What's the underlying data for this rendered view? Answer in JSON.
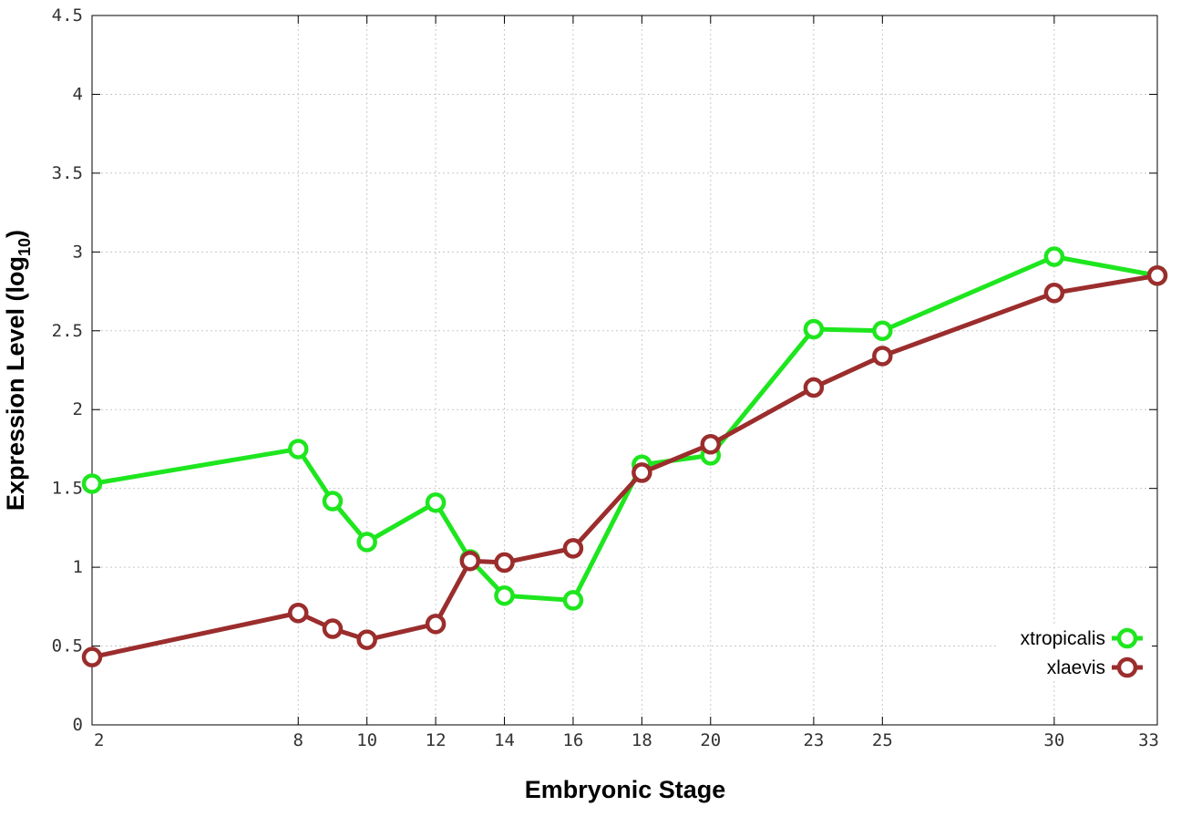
{
  "chart_data": {
    "type": "line",
    "xlabel": "Embryonic Stage",
    "ylabel": "Expression Level (log",
    "ylabel_sub": "10",
    "ylabel_end": ")",
    "xlim": [
      2,
      33
    ],
    "ylim": [
      0,
      4.5
    ],
    "grid": true,
    "legend_position": "bottom-right",
    "x_ticks": [
      2,
      8,
      10,
      12,
      14,
      16,
      18,
      20,
      23,
      25,
      30,
      33
    ],
    "y_ticks": [
      0,
      0.5,
      1,
      1.5,
      2,
      2.5,
      3,
      3.5,
      4,
      4.5
    ],
    "x_tick_labels": [
      "2",
      "8",
      "10",
      "12",
      "14",
      "16",
      "18",
      "20",
      "23",
      "25",
      "30",
      "33"
    ],
    "y_tick_labels": [
      "0",
      "0.5",
      "1",
      "1.5",
      "2",
      "2.5",
      "3",
      "3.5",
      "4",
      "4.5"
    ],
    "series": [
      {
        "name": "xtropicalis",
        "color": "#1ee61e",
        "x": [
          2,
          8,
          9,
          10,
          12,
          13,
          14,
          16,
          18,
          20,
          23,
          25,
          30,
          33
        ],
        "y": [
          1.53,
          1.75,
          1.42,
          1.16,
          1.41,
          1.05,
          0.82,
          0.79,
          1.65,
          1.71,
          2.51,
          2.5,
          2.97,
          2.85
        ]
      },
      {
        "name": "xlaevis",
        "color": "#9b2d2d",
        "x": [
          2,
          8,
          9,
          10,
          12,
          13,
          14,
          16,
          18,
          20,
          23,
          25,
          30,
          33
        ],
        "y": [
          0.43,
          0.71,
          0.61,
          0.54,
          0.64,
          1.04,
          1.03,
          1.12,
          1.6,
          1.78,
          2.14,
          2.34,
          2.74,
          2.85
        ]
      }
    ]
  }
}
